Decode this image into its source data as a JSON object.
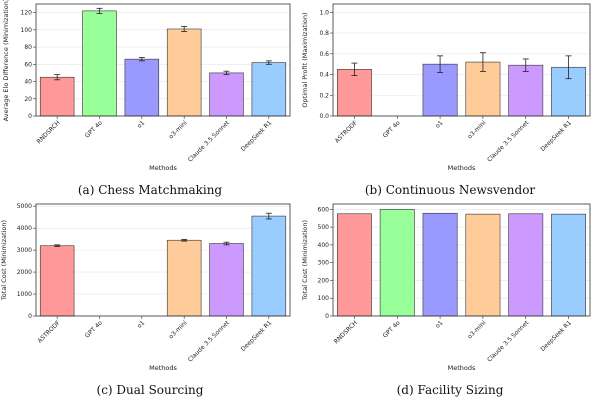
{
  "chart_data": [
    {
      "id": "a",
      "type": "bar",
      "caption": "(a) Chess Matchmaking",
      "xlabel": "Methods",
      "ylabel": "Average Elo Difference (Minimization)",
      "ylim": [
        0,
        130
      ],
      "yticks": [
        0,
        20,
        40,
        60,
        80,
        100,
        120
      ],
      "ytick_labels": [
        "0",
        "20",
        "40",
        "60",
        "80",
        "100",
        "120"
      ],
      "grid": true,
      "categories": [
        "RNDSRCH",
        "GPT 4o",
        "o1",
        "o3-mini",
        "Claude 3.5 Sonnet",
        "DeepSeek R1"
      ],
      "values": [
        45,
        122,
        66,
        101,
        50,
        62
      ],
      "errors": [
        3,
        3,
        2,
        3,
        2,
        2
      ],
      "colors": [
        "#ff9999",
        "#99ff99",
        "#9999ff",
        "#ffcc99",
        "#cc99ff",
        "#99ccff"
      ]
    },
    {
      "id": "b",
      "type": "bar",
      "caption": "(b) Continuous Newsvendor",
      "xlabel": "Methods",
      "ylabel": "Optimal Profit (Maximization)",
      "ylim": [
        0,
        1.08
      ],
      "yticks": [
        0,
        0.2,
        0.4,
        0.6,
        0.8,
        1.0
      ],
      "ytick_labels": [
        "0.0",
        "0.2",
        "0.4",
        "0.6",
        "0.8",
        "1.0"
      ],
      "grid": true,
      "categories": [
        "ASTRODF",
        "GPT 4o",
        "o1",
        "o3-mini",
        "Claude 3.5 Sonnet",
        "DeepSeek R1"
      ],
      "values": [
        0.45,
        0,
        0.5,
        0.52,
        0.49,
        0.47
      ],
      "errors": [
        0.06,
        0,
        0.08,
        0.09,
        0.06,
        0.11
      ],
      "colors": [
        "#ff9999",
        "#99ff99",
        "#9999ff",
        "#ffcc99",
        "#cc99ff",
        "#99ccff"
      ]
    },
    {
      "id": "c",
      "type": "bar",
      "caption": "(c) Dual Sourcing",
      "xlabel": "Methods",
      "ylabel": "Total Cost (Minimization)",
      "ylim": [
        0,
        5100
      ],
      "yticks": [
        0,
        1000,
        2000,
        3000,
        4000,
        5000
      ],
      "ytick_labels": [
        "0",
        "1000",
        "2000",
        "3000",
        "4000",
        "5000"
      ],
      "grid": true,
      "categories": [
        "ASTRODF",
        "GPT 4o",
        "o1",
        "o3-mini",
        "Claude 3.5 Sonnet",
        "DeepSeek R1"
      ],
      "values": [
        3200,
        0,
        0,
        3450,
        3300,
        4550
      ],
      "errors": [
        40,
        0,
        0,
        40,
        60,
        130
      ],
      "colors": [
        "#ff9999",
        "#99ff99",
        "#9999ff",
        "#ffcc99",
        "#cc99ff",
        "#99ccff"
      ]
    },
    {
      "id": "d",
      "type": "bar",
      "caption": "(d) Facility Sizing",
      "xlabel": "Methods",
      "ylabel": "Total Cost (Minimization)",
      "ylim": [
        0,
        630
      ],
      "yticks": [
        0,
        100,
        200,
        300,
        400,
        500,
        600
      ],
      "ytick_labels": [
        "0",
        "100",
        "200",
        "300",
        "400",
        "500",
        "600"
      ],
      "grid": true,
      "categories": [
        "RNDSRCH",
        "GPT 4o",
        "o1",
        "o3-mini",
        "Claude 3.5 Sonnet",
        "DeepSeek R1"
      ],
      "values": [
        575,
        600,
        578,
        573,
        575,
        573
      ],
      "errors": [
        0,
        0,
        0,
        0,
        0,
        0
      ],
      "colors": [
        "#ff9999",
        "#99ff99",
        "#9999ff",
        "#ffcc99",
        "#cc99ff",
        "#99ccff"
      ]
    }
  ]
}
